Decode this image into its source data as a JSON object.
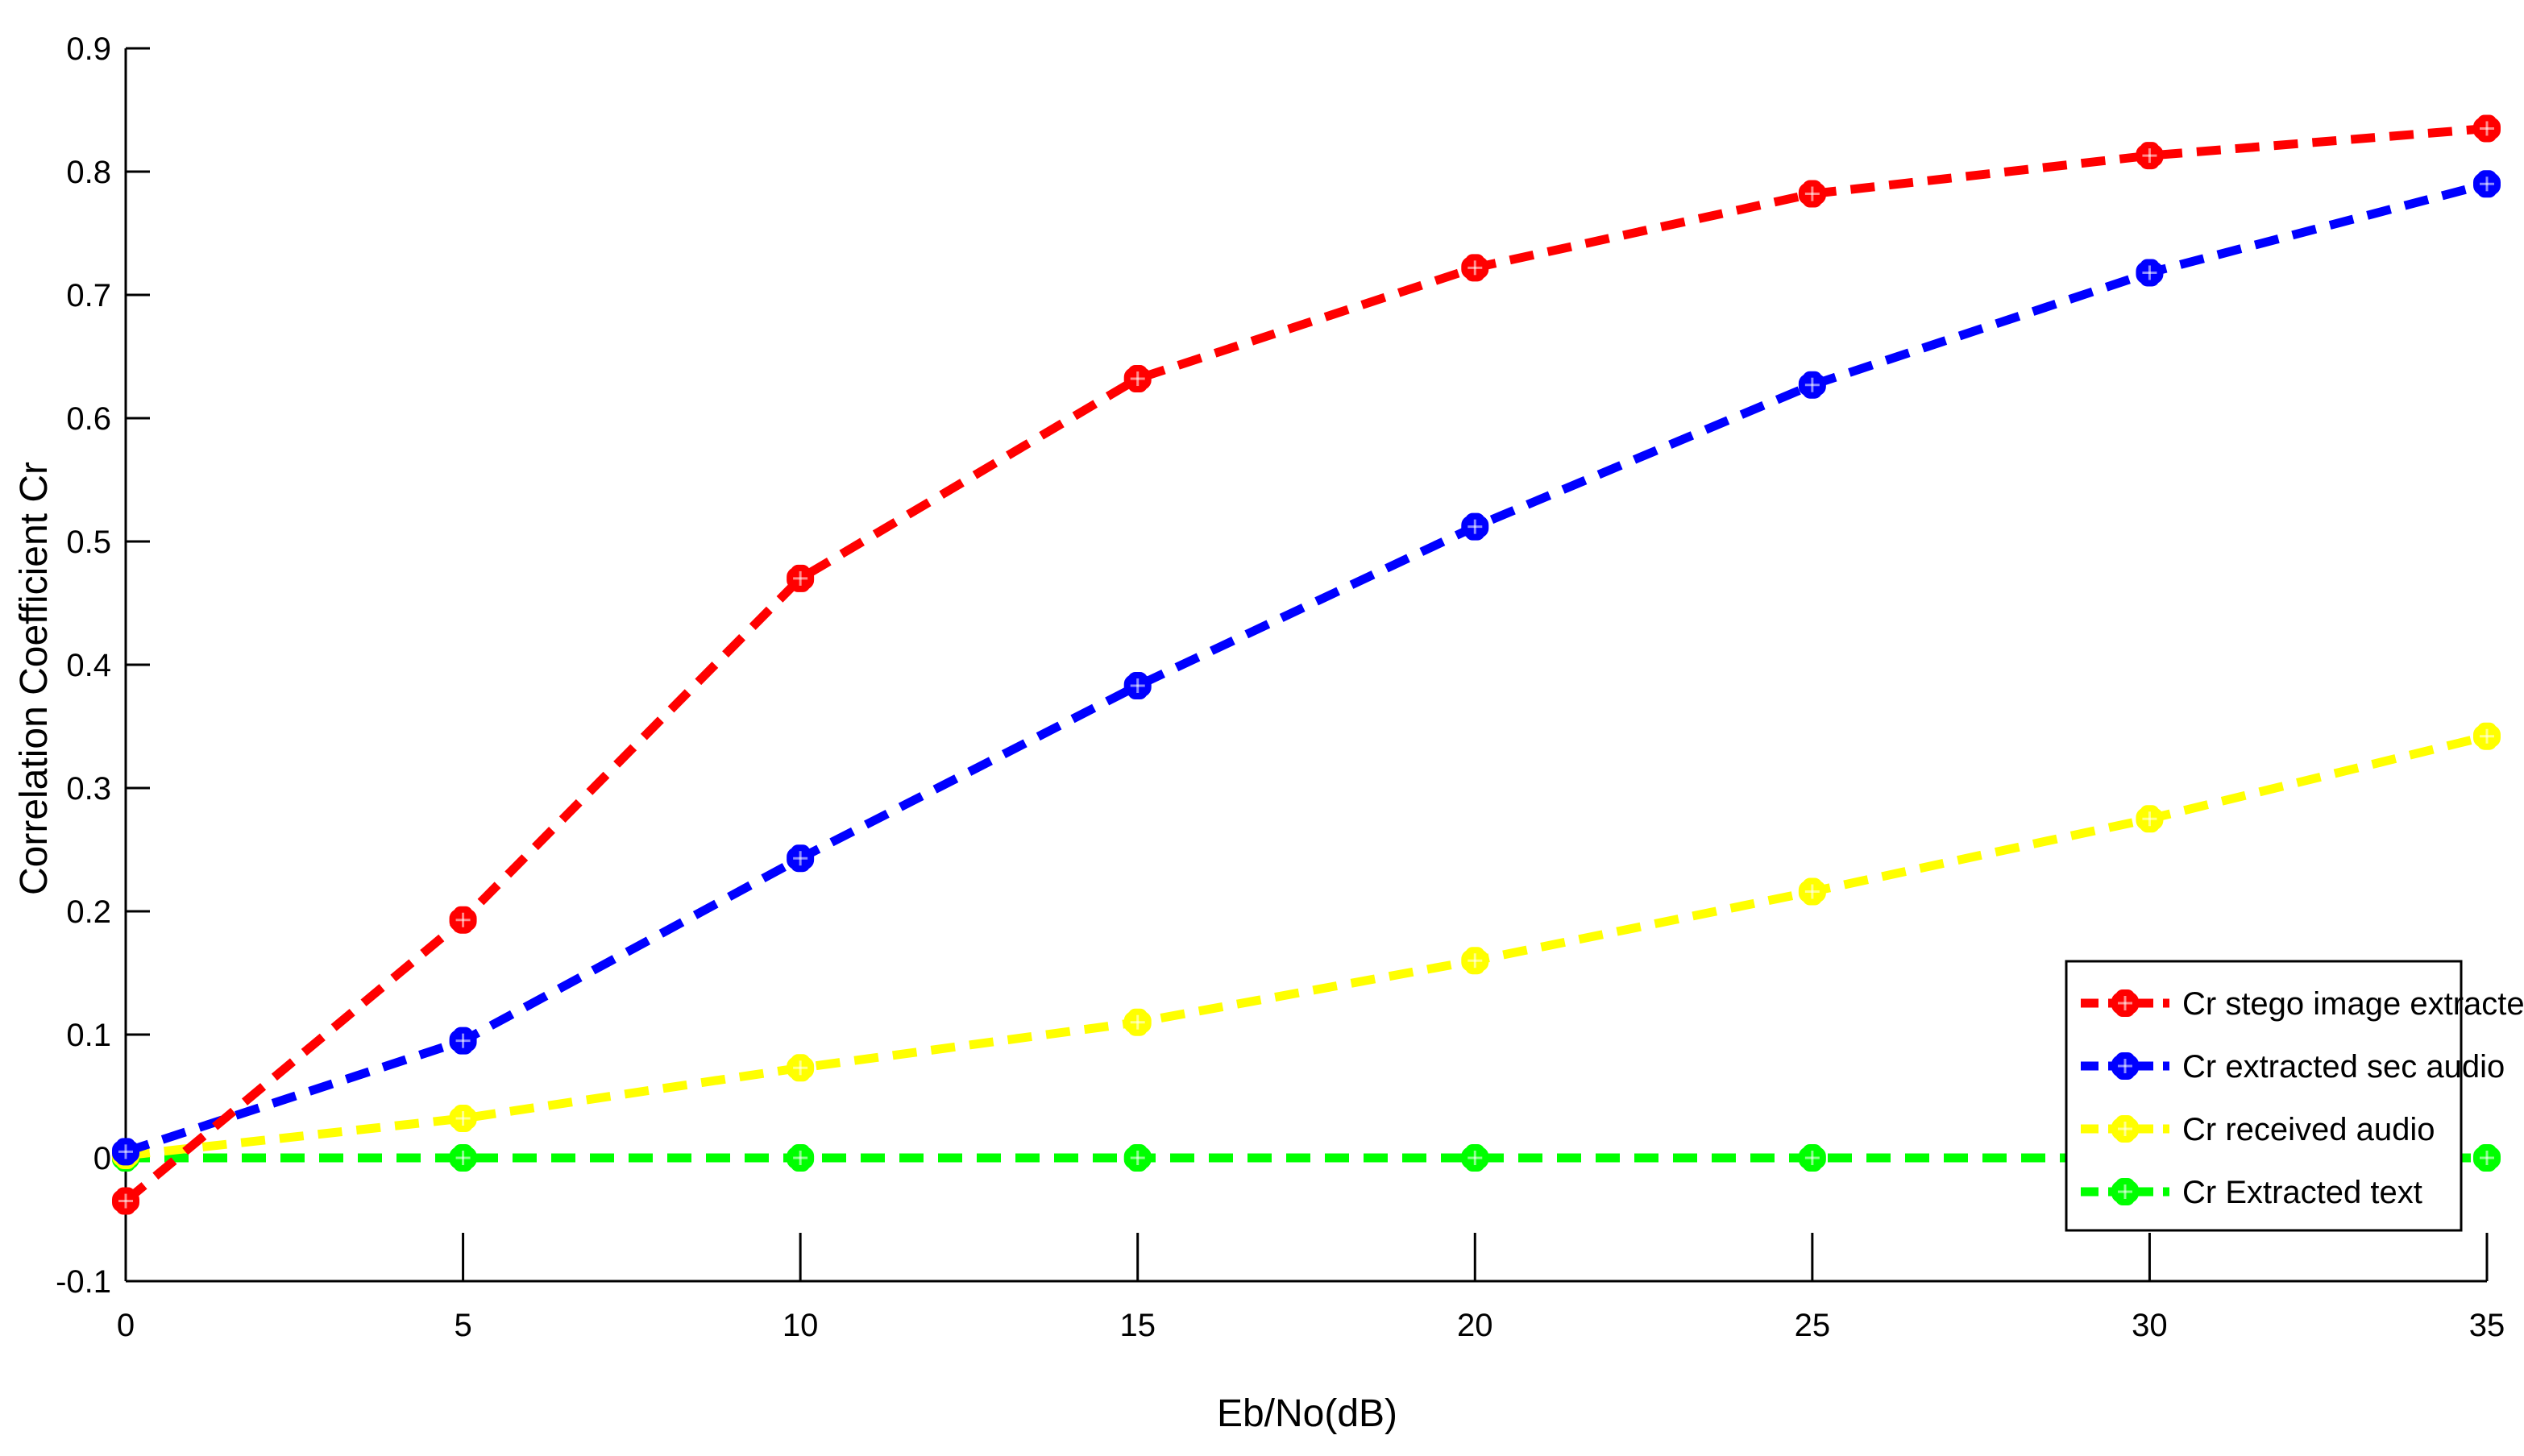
{
  "chart_data": {
    "type": "line",
    "xlabel": "Eb/No(dB)",
    "ylabel": "Correlation Coefficient Cr",
    "xlim": [
      0,
      35
    ],
    "ylim": [
      -0.1,
      0.9
    ],
    "x": [
      0,
      5,
      10,
      15,
      20,
      25,
      30,
      35
    ],
    "xticks": [
      "0",
      "5",
      "10",
      "15",
      "20",
      "25",
      "30",
      "35"
    ],
    "yticks": [
      "-0.1",
      "0",
      "0.1",
      "0.2",
      "0.3",
      "0.4",
      "0.5",
      "0.6",
      "0.7",
      "0.8",
      "0.9"
    ],
    "grid": false,
    "legend_position": "bottom-right",
    "series": [
      {
        "name": "Cr stego image extracted",
        "color": "#ff0000",
        "values": [
          -0.035,
          0.193,
          0.47,
          0.632,
          0.722,
          0.782,
          0.813,
          0.835
        ]
      },
      {
        "name": "Cr extracted sec audio",
        "color": "#0000ff",
        "values": [
          0.005,
          0.095,
          0.243,
          0.383,
          0.512,
          0.627,
          0.718,
          0.79
        ]
      },
      {
        "name": "Cr received audio",
        "color": "#ffff00",
        "values": [
          0.002,
          0.032,
          0.073,
          0.11,
          0.16,
          0.216,
          0.275,
          0.342
        ]
      },
      {
        "name": "Cr Extracted text",
        "color": "#00ff00",
        "values": [
          0.0,
          0.0,
          0.0,
          0.0,
          0.0,
          0.0,
          0.0,
          0.0
        ]
      }
    ]
  }
}
